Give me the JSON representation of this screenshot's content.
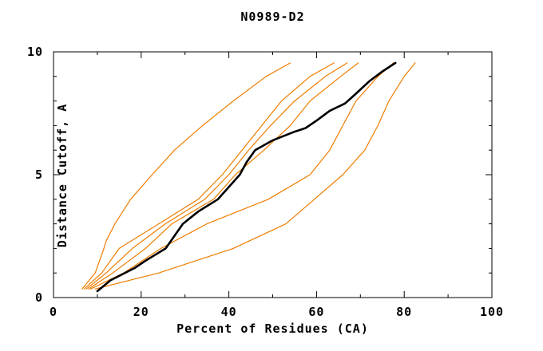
{
  "title": "N0989-D2",
  "chart_data": {
    "type": "line",
    "title": "N0989-D2",
    "xlabel": "Percent of Residues (CA)",
    "ylabel": "Distance Cutoff, A",
    "xlim": [
      0,
      100
    ],
    "ylim": [
      0,
      10
    ],
    "x_ticks_major": [
      0,
      20,
      40,
      60,
      80,
      100
    ],
    "x_minor_step": 10,
    "y_ticks_major": [
      0,
      5,
      10
    ],
    "y_minor_step": 1,
    "grid": false,
    "legend_position": "none",
    "background_color": "#ffffff",
    "axis_color": "#000000",
    "model_curve_color": "#ee7d00",
    "highlight_curve_color": "#000000",
    "series": [
      {
        "name": "orange-curve-1",
        "color": "#ee7d00",
        "width": 1.2,
        "points": [
          [
            6.5,
            0.35
          ],
          [
            9.5,
            1
          ],
          [
            11.5,
            2
          ],
          [
            12,
            2.3
          ],
          [
            14,
            3
          ],
          [
            17.6,
            4
          ],
          [
            22.5,
            5
          ],
          [
            27.6,
            6
          ],
          [
            34,
            7
          ],
          [
            41,
            8
          ],
          [
            48.5,
            9
          ],
          [
            54,
            9.55
          ]
        ]
      },
      {
        "name": "orange-curve-2",
        "color": "#ee7d00",
        "width": 1.2,
        "points": [
          [
            7,
            0.35
          ],
          [
            11,
            1
          ],
          [
            15,
            2
          ],
          [
            24,
            3
          ],
          [
            33,
            4
          ],
          [
            38.5,
            5
          ],
          [
            43,
            6
          ],
          [
            47.5,
            7
          ],
          [
            52,
            8
          ],
          [
            58.5,
            9
          ],
          [
            64,
            9.55
          ]
        ]
      },
      {
        "name": "orange-curve-3",
        "color": "#ee7d00",
        "width": 1.2,
        "points": [
          [
            7.5,
            0.35
          ],
          [
            12,
            1
          ],
          [
            18,
            2
          ],
          [
            25.5,
            3
          ],
          [
            34.5,
            4
          ],
          [
            40,
            5
          ],
          [
            44.5,
            6
          ],
          [
            49.5,
            7
          ],
          [
            55,
            8
          ],
          [
            62,
            9
          ],
          [
            67,
            9.55
          ]
        ]
      },
      {
        "name": "orange-curve-4",
        "color": "#ee7d00",
        "width": 1.2,
        "points": [
          [
            8,
            0.35
          ],
          [
            13.5,
            1
          ],
          [
            21,
            2
          ],
          [
            27,
            3
          ],
          [
            36.5,
            4
          ],
          [
            41.5,
            5
          ],
          [
            48,
            6
          ],
          [
            54,
            7
          ],
          [
            58.5,
            8
          ],
          [
            65.5,
            9
          ],
          [
            69.5,
            9.55
          ]
        ]
      },
      {
        "name": "orange-curve-5",
        "color": "#ee7d00",
        "width": 1.2,
        "points": [
          [
            8.5,
            0.35
          ],
          [
            16,
            1
          ],
          [
            24.5,
            2
          ],
          [
            35,
            3
          ],
          [
            49,
            4
          ],
          [
            58.5,
            5
          ],
          [
            63,
            6
          ],
          [
            66,
            7
          ],
          [
            69,
            8
          ],
          [
            74,
            9
          ],
          [
            77.5,
            9.55
          ]
        ]
      },
      {
        "name": "orange-curve-6",
        "color": "#ee7d00",
        "width": 1.2,
        "points": [
          [
            9.5,
            0.35
          ],
          [
            24,
            1
          ],
          [
            41,
            2
          ],
          [
            53,
            3
          ],
          [
            59.5,
            4
          ],
          [
            66,
            5
          ],
          [
            71,
            6
          ],
          [
            74,
            7
          ],
          [
            76.5,
            8
          ],
          [
            80,
            9
          ],
          [
            82.5,
            9.55
          ]
        ]
      },
      {
        "name": "black-curve",
        "color": "#000000",
        "width": 2.6,
        "points": [
          [
            10,
            0.26
          ],
          [
            13,
            0.7
          ],
          [
            18.5,
            1.2
          ],
          [
            21,
            1.5
          ],
          [
            25.6,
            2
          ],
          [
            29.5,
            3
          ],
          [
            33,
            3.5
          ],
          [
            37.5,
            4
          ],
          [
            40,
            4.5
          ],
          [
            42.5,
            5
          ],
          [
            44,
            5.5
          ],
          [
            46,
            6
          ],
          [
            50,
            6.4
          ],
          [
            55,
            6.75
          ],
          [
            57.5,
            6.9
          ],
          [
            60,
            7.2
          ],
          [
            63,
            7.6
          ],
          [
            66.5,
            7.9
          ],
          [
            69,
            8.3
          ],
          [
            72,
            8.8
          ],
          [
            75,
            9.2
          ],
          [
            78,
            9.55
          ]
        ]
      }
    ]
  }
}
